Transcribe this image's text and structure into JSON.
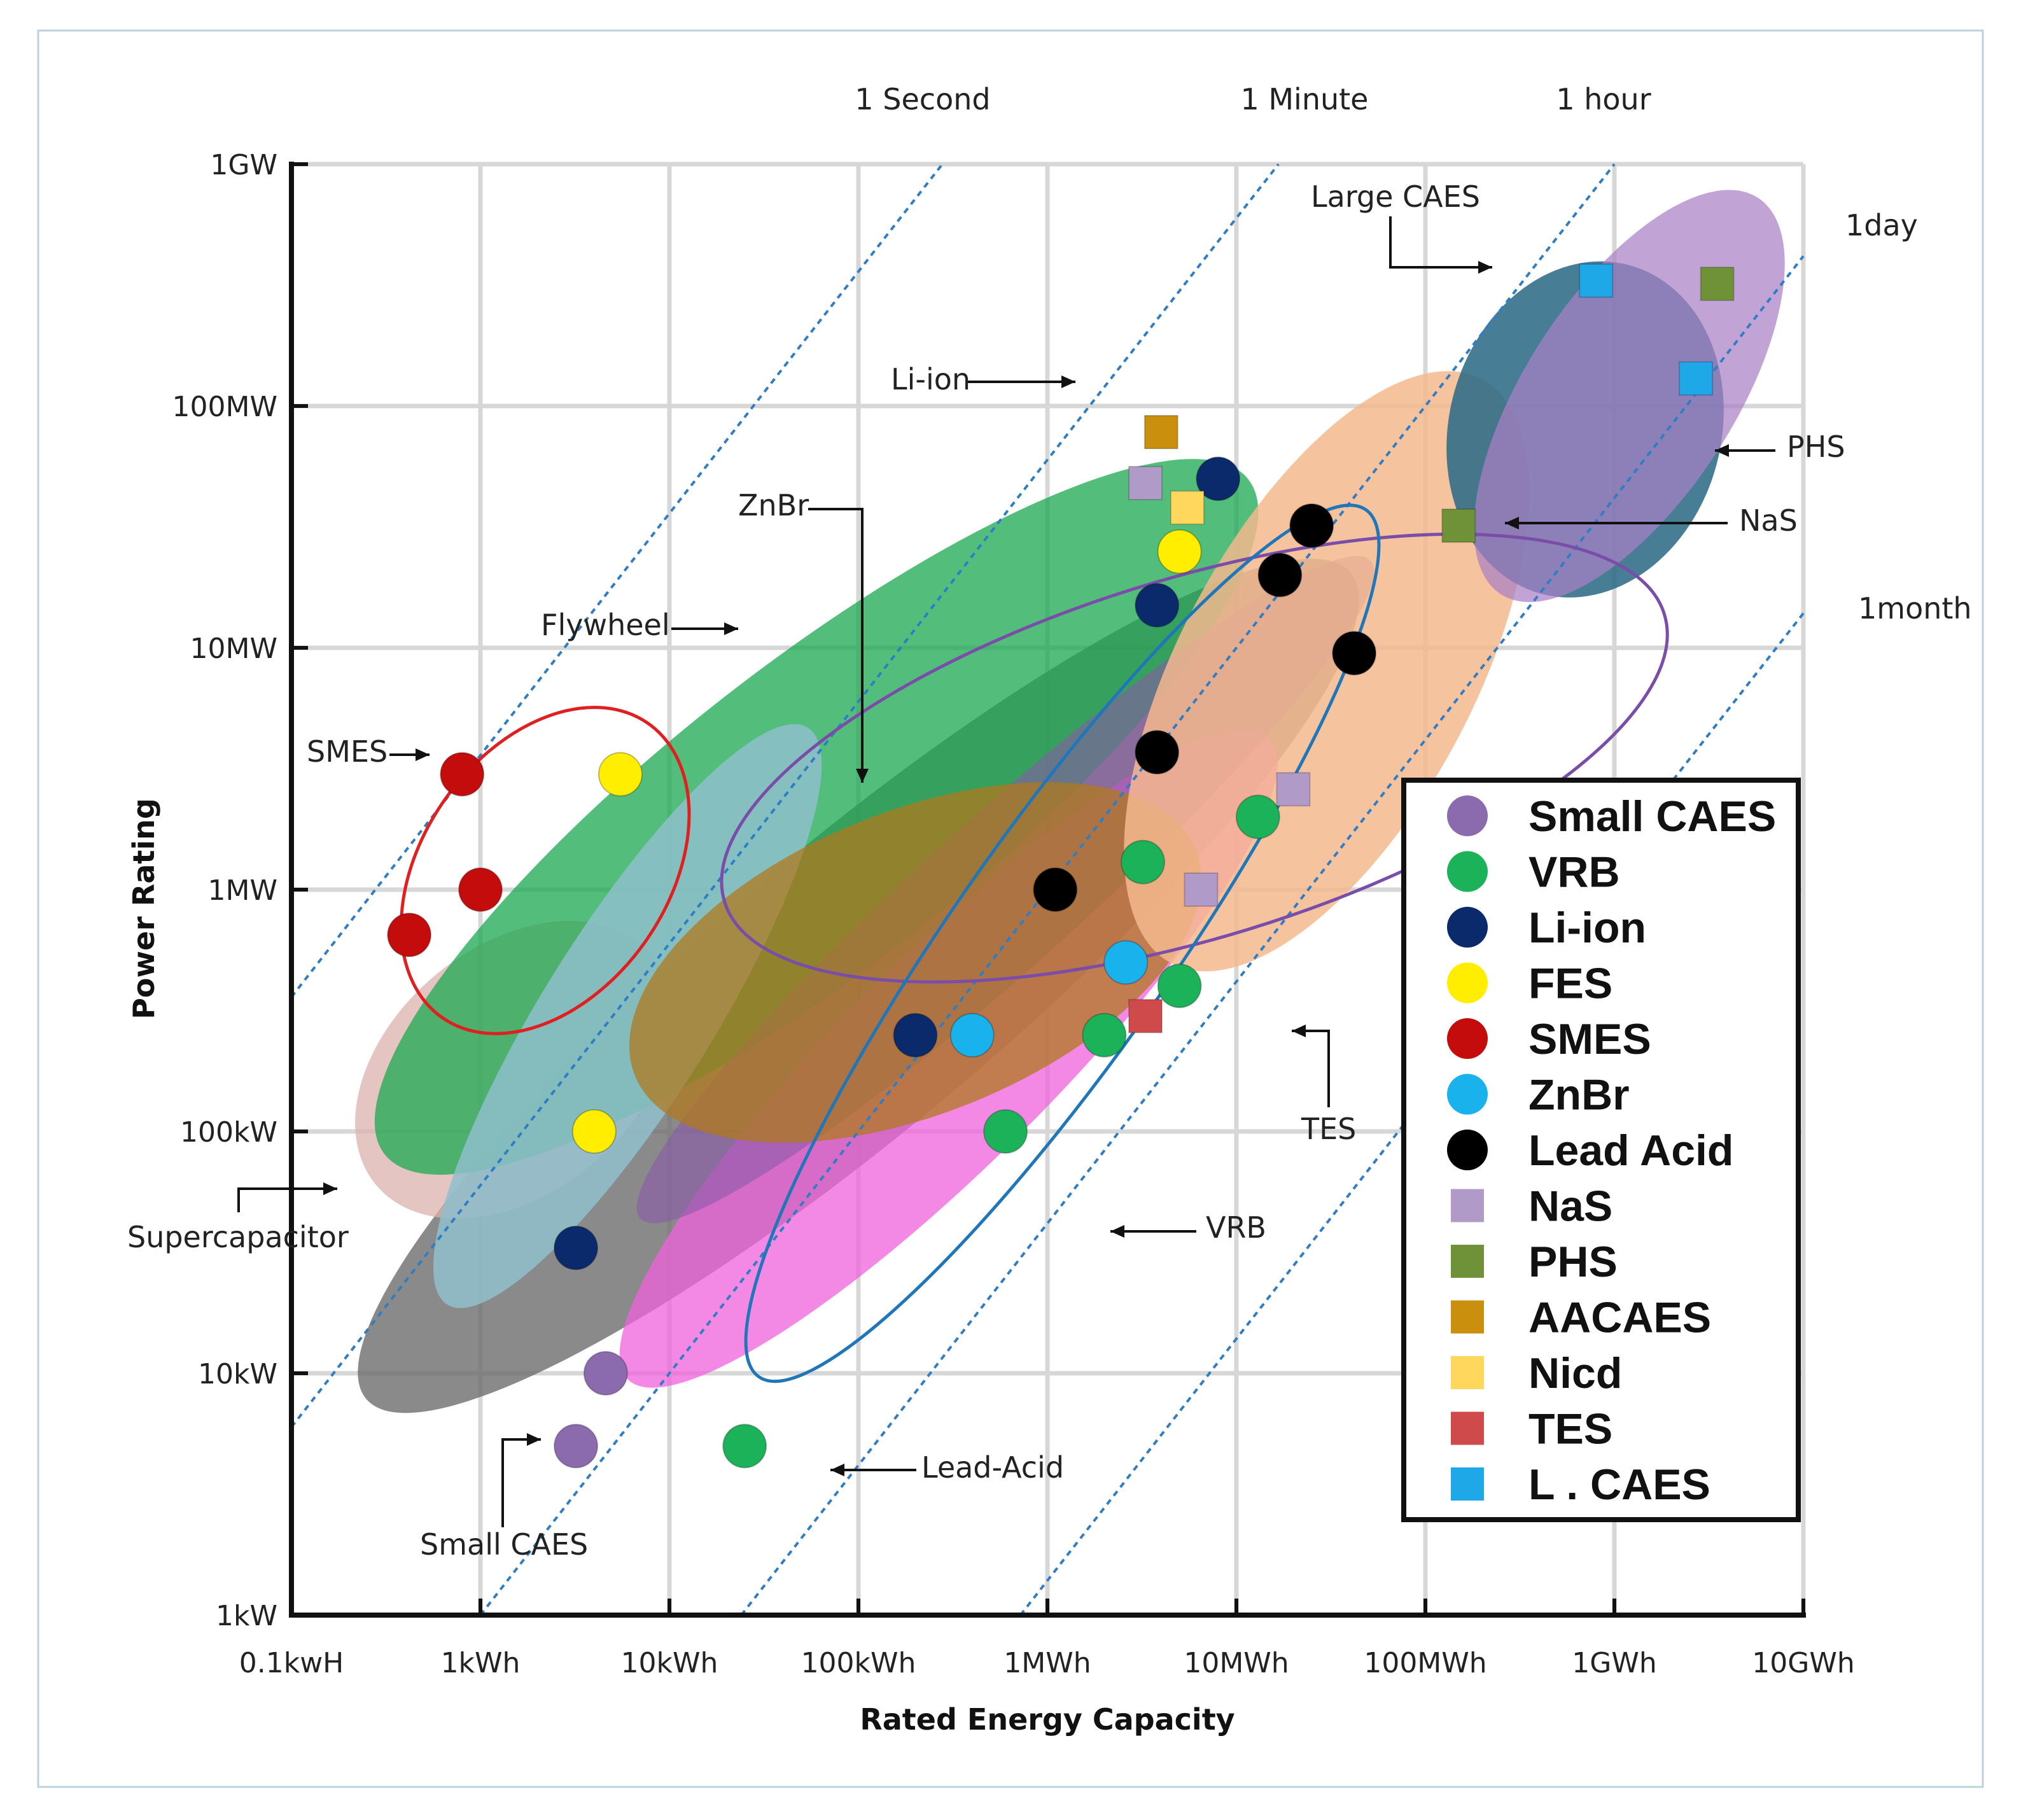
{
  "chart_data": {
    "type": "scatter",
    "xlabel": "Rated Energy Capacity",
    "ylabel": "Power Rating",
    "x_scale": "log10",
    "y_scale": "log10",
    "x_unit": "kWh",
    "y_unit": "kW",
    "xlim": [
      0.1,
      10000000
    ],
    "ylim": [
      1,
      1000000
    ],
    "x_ticks": [
      {
        "value": 0.1,
        "label": "0.1kwH"
      },
      {
        "value": 1,
        "label": "1kWh"
      },
      {
        "value": 10,
        "label": "10kWh"
      },
      {
        "value": 100,
        "label": "100kWh"
      },
      {
        "value": 1000,
        "label": "1MWh"
      },
      {
        "value": 10000,
        "label": "10MWh"
      },
      {
        "value": 100000,
        "label": "100MWh"
      },
      {
        "value": 1000000,
        "label": "1GWh"
      },
      {
        "value": 10000000,
        "label": "10GWh"
      }
    ],
    "y_ticks": [
      {
        "value": 1,
        "label": "1kW"
      },
      {
        "value": 10,
        "label": "10kW"
      },
      {
        "value": 100,
        "label": "100kW"
      },
      {
        "value": 1000,
        "label": "1MW"
      },
      {
        "value": 10000,
        "label": "10MW"
      },
      {
        "value": 100000,
        "label": "100MW"
      },
      {
        "value": 1000000,
        "label": "1GW"
      }
    ],
    "grid": true,
    "discharge_time_lines": [
      {
        "label": "1 Second",
        "hours": 0.000278
      },
      {
        "label": "1 Minute",
        "hours": 0.0167
      },
      {
        "label": "1 hour",
        "hours": 1
      },
      {
        "label": "1day",
        "hours": 24
      },
      {
        "label": "1month",
        "hours": 720
      }
    ],
    "regions": [
      {
        "name": "Li-ion",
        "color": "#6d6d6d",
        "opacity": 0.8,
        "center": [
          100,
          400
        ],
        "semi_major_decades": 3.4,
        "semi_minor_decades": 0.75,
        "angle_deg": 40
      },
      {
        "name": "Supercapacitor",
        "color": "#dcb2ad",
        "opacity": 0.75,
        "center": [
          1.5,
          180
        ],
        "semi_major_decades": 0.95,
        "semi_minor_decades": 0.65,
        "angle_deg": 40
      },
      {
        "name": "Flywheel",
        "color": "#1aa84f",
        "opacity": 0.75,
        "center": [
          60,
          2000
        ],
        "semi_major_decades": 2.9,
        "semi_minor_decades": 0.8,
        "angle_deg": 38
      },
      {
        "name": "Small CAES",
        "color": "#8fbfcc",
        "opacity": 0.85,
        "center": [
          6,
          300
        ],
        "semi_major_decades": 1.8,
        "semi_minor_decades": 0.45,
        "angle_deg": 58
      },
      {
        "name": "Lead-Acid",
        "color": "#f061dc",
        "opacity": 0.75,
        "center": [
          300,
          200
        ],
        "semi_major_decades": 2.4,
        "semi_minor_decades": 0.55,
        "angle_deg": 45
      },
      {
        "name": "Small CAES",
        "color": "#8b5aa8",
        "opacity": 0.6,
        "center": [
          600,
          1000
        ],
        "semi_major_decades": 2.6,
        "semi_minor_decades": 0.4,
        "angle_deg": 42
      },
      {
        "name": "ZnBr",
        "color": "#b07a1e",
        "opacity": 0.75,
        "center": [
          200,
          500
        ],
        "semi_major_decades": 1.6,
        "semi_minor_decades": 0.8,
        "angle_deg": 22
      },
      {
        "name": "TES",
        "color": "#f5b98e",
        "opacity": 0.85,
        "center": [
          30000,
          8000
        ],
        "semi_major_decades": 1.75,
        "semi_minor_decades": 0.78,
        "angle_deg": 62
      },
      {
        "name": "Large CAES",
        "color": "#2d6b86",
        "opacity": 0.88,
        "center": [
          700000,
          80000
        ],
        "semi_major_decades": 0.9,
        "semi_minor_decades": 0.72,
        "angle_deg": 75
      },
      {
        "name": "PHS",
        "color": "#a980c5",
        "opacity": 0.72,
        "center": [
          1200000,
          110000
        ],
        "semi_major_decades": 1.25,
        "semi_minor_decades": 0.55,
        "angle_deg": 57
      }
    ],
    "outlines": [
      {
        "name": "SMES",
        "color": "#e02020",
        "center": [
          2.2,
          1200
        ],
        "semi_major_decades": 0.95,
        "semi_minor_decades": 0.65,
        "angle_deg": 55
      },
      {
        "name": "NaS",
        "color": "#7a4ea8",
        "center": [
          6000,
          3500
        ],
        "semi_major_decades": 2.6,
        "semi_minor_decades": 0.95,
        "angle_deg": 17
      },
      {
        "name": "VRB",
        "color": "#1f76b8",
        "center": [
          1200,
          600
        ],
        "semi_major_decades": 2.8,
        "semi_minor_decades": 0.58,
        "angle_deg": 55
      }
    ],
    "annotations": [
      {
        "text": "Li-ion",
        "at": [
          1200,
          120000
        ]
      },
      {
        "text": "ZnBr",
        "at": [
          100,
          2500
        ]
      },
      {
        "text": "Flywheel",
        "at": [
          30,
          12000
        ]
      },
      {
        "text": "SMES",
        "at": [
          0.7,
          3200
        ]
      },
      {
        "text": "Supercapacitor",
        "at": [
          1.2,
          80
        ]
      },
      {
        "text": "Small CAES",
        "at": [
          2,
          5
        ]
      },
      {
        "text": "Lead-Acid",
        "at": [
          70,
          3.5
        ]
      },
      {
        "text": "VRB",
        "at": [
          2000,
          35
        ]
      },
      {
        "text": "TES",
        "at": [
          12000,
          300
        ]
      },
      {
        "text": "Large CAES",
        "at": [
          250000,
          350000
        ]
      },
      {
        "text": "PHS",
        "at": [
          3000000,
          70000
        ]
      },
      {
        "text": "NaS",
        "at": [
          300000,
          25000
        ]
      }
    ],
    "series": [
      {
        "name": "Small CAES",
        "marker": "circle",
        "color": "#8b6aad",
        "points": [
          [
            3.2,
            5
          ],
          [
            4.6,
            10
          ]
        ]
      },
      {
        "name": "VRB",
        "marker": "circle",
        "color": "#1cb25a",
        "points": [
          [
            25,
            5
          ],
          [
            600,
            100
          ],
          [
            2000,
            250
          ],
          [
            3200,
            1300
          ],
          [
            5000,
            400
          ],
          [
            13000,
            2000
          ]
        ]
      },
      {
        "name": "Li-ion",
        "marker": "circle",
        "color": "#0b2a6b",
        "points": [
          [
            3.2,
            33
          ],
          [
            200,
            250
          ],
          [
            3800,
            15000
          ],
          [
            8000,
            50000
          ]
        ]
      },
      {
        "name": "FES",
        "marker": "circle",
        "color": "#ffee00",
        "points": [
          [
            4,
            100
          ],
          [
            5.5,
            3000
          ],
          [
            5000,
            25000
          ]
        ]
      },
      {
        "name": "SMES",
        "marker": "circle",
        "color": "#c40c0c",
        "points": [
          [
            0.42,
            650
          ],
          [
            0.8,
            3000
          ],
          [
            1,
            1000
          ]
        ]
      },
      {
        "name": "ZnBr",
        "marker": "circle",
        "color": "#1ab2ec",
        "points": [
          [
            400,
            250
          ],
          [
            2600,
            500
          ]
        ]
      },
      {
        "name": "Lead Acid",
        "marker": "circle",
        "color": "#000000",
        "points": [
          [
            1100,
            1000
          ],
          [
            3800,
            3700
          ],
          [
            17000,
            20000
          ],
          [
            25000,
            32000
          ],
          [
            42000,
            9500
          ]
        ]
      },
      {
        "name": "NaS",
        "marker": "square",
        "color": "#b09ac8",
        "points": [
          [
            3300,
            48000
          ],
          [
            6500,
            1000
          ],
          [
            20000,
            2600
          ]
        ]
      },
      {
        "name": "PHS",
        "marker": "square",
        "color": "#6f9238",
        "points": [
          [
            150000,
            32000
          ],
          [
            3500000,
            320000
          ]
        ]
      },
      {
        "name": "AACAES",
        "marker": "square",
        "color": "#c98f0d",
        "points": [
          [
            4000,
            78000
          ]
        ]
      },
      {
        "name": "Nicd",
        "marker": "square",
        "color": "#ffd75c",
        "points": [
          [
            5500,
            38000
          ]
        ]
      },
      {
        "name": "TES",
        "marker": "square",
        "color": "#cf4a4a",
        "points": [
          [
            3300,
            300
          ]
        ]
      },
      {
        "name": "L . CAES",
        "marker": "square",
        "color": "#1ea8e8",
        "points": [
          [
            800000,
            330000
          ],
          [
            2700000,
            130000
          ]
        ]
      }
    ],
    "legend": {
      "position": "right",
      "entries": [
        {
          "label": "Small CAES",
          "marker": "circle",
          "color": "#8b6aad"
        },
        {
          "label": "VRB",
          "marker": "circle",
          "color": "#1cb25a"
        },
        {
          "label": "Li-ion",
          "marker": "circle",
          "color": "#0b2a6b"
        },
        {
          "label": "FES",
          "marker": "circle",
          "color": "#ffee00"
        },
        {
          "label": "SMES",
          "marker": "circle",
          "color": "#c40c0c"
        },
        {
          "label": "ZnBr",
          "marker": "circle",
          "color": "#1ab2ec"
        },
        {
          "label": "Lead Acid",
          "marker": "circle",
          "color": "#000000"
        },
        {
          "label": "NaS",
          "marker": "square",
          "color": "#b09ac8"
        },
        {
          "label": "PHS",
          "marker": "square",
          "color": "#6f9238"
        },
        {
          "label": "AACAES",
          "marker": "square",
          "color": "#c98f0d"
        },
        {
          "label": "Nicd",
          "marker": "square",
          "color": "#ffd75c"
        },
        {
          "label": "TES",
          "marker": "square",
          "color": "#cf4a4a"
        },
        {
          "label": "L . CAES",
          "marker": "square",
          "color": "#1ea8e8"
        }
      ]
    }
  }
}
